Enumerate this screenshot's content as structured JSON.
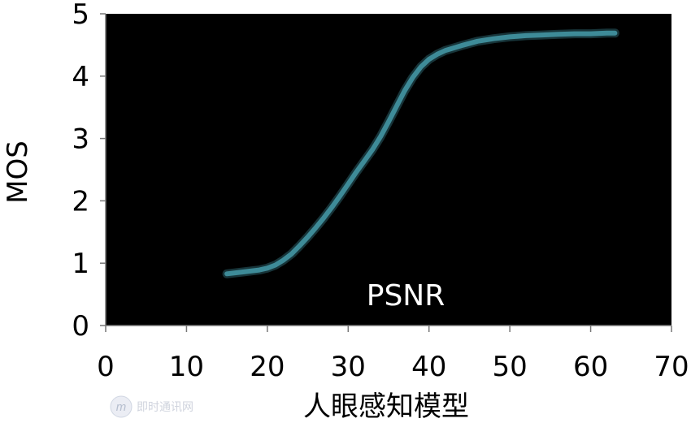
{
  "chart_data": {
    "type": "line",
    "title": "",
    "xlabel": "人眼感知模型",
    "ylabel": "MOS",
    "xlim": [
      0,
      70
    ],
    "ylim": [
      0,
      5
    ],
    "x_ticks": [
      "0",
      "10",
      "20",
      "30",
      "40",
      "50",
      "60",
      "70"
    ],
    "y_ticks": [
      "0",
      "1",
      "2",
      "3",
      "4",
      "5"
    ],
    "grid": false,
    "series": [
      {
        "x": [
          15,
          17,
          19,
          20,
          21,
          22,
          23,
          24,
          25,
          26,
          27,
          28,
          29,
          30,
          31,
          32,
          33,
          34,
          35,
          36,
          37,
          38,
          39,
          40,
          41,
          42,
          44,
          46,
          48,
          50,
          52,
          54,
          56,
          58,
          60,
          62,
          63
        ],
        "y": [
          0.83,
          0.86,
          0.89,
          0.92,
          0.97,
          1.05,
          1.15,
          1.28,
          1.42,
          1.57,
          1.73,
          1.9,
          2.08,
          2.27,
          2.46,
          2.64,
          2.82,
          3.03,
          3.27,
          3.52,
          3.77,
          3.98,
          4.15,
          4.27,
          4.35,
          4.41,
          4.49,
          4.56,
          4.6,
          4.63,
          4.65,
          4.66,
          4.67,
          4.68,
          4.68,
          4.69,
          4.69
        ]
      }
    ],
    "annotations": [
      "PSNR"
    ],
    "colors": {
      "plot_background": "#000000",
      "line": "#3e8b98",
      "line_glow": "#2a5f68"
    }
  },
  "watermark": {
    "text": "即时通讯网",
    "logo": "m"
  }
}
